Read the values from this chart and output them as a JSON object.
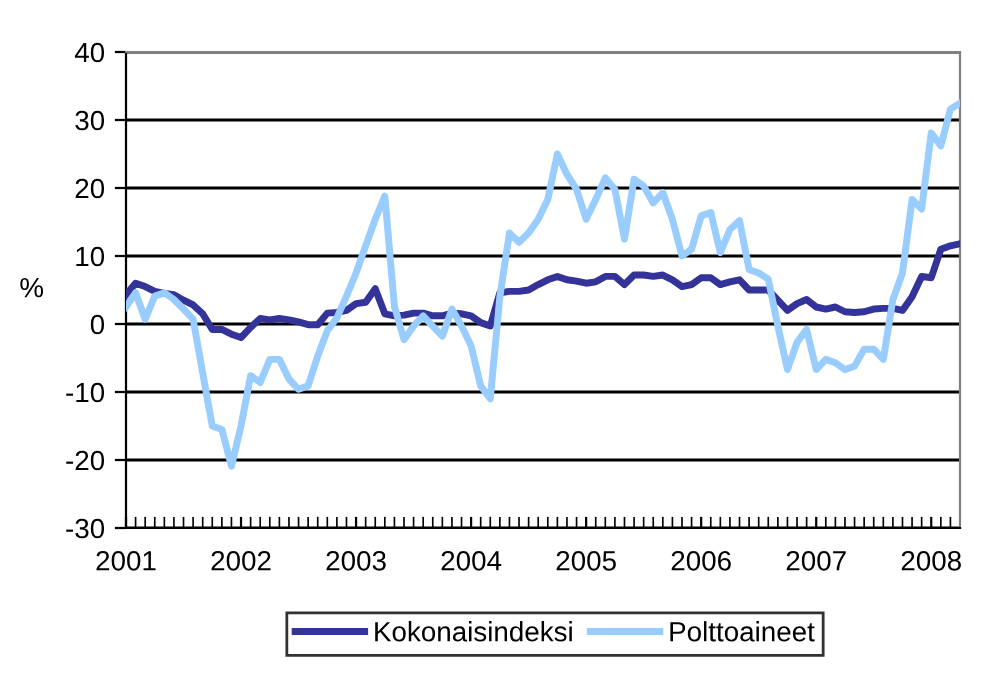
{
  "chart_data": {
    "type": "line",
    "ylabel": "%",
    "x": [
      "2001-01",
      "2001-02",
      "2001-03",
      "2001-04",
      "2001-05",
      "2001-06",
      "2001-07",
      "2001-08",
      "2001-09",
      "2001-10",
      "2001-11",
      "2001-12",
      "2002-01",
      "2002-02",
      "2002-03",
      "2002-04",
      "2002-05",
      "2002-06",
      "2002-07",
      "2002-08",
      "2002-09",
      "2002-10",
      "2002-11",
      "2002-12",
      "2003-01",
      "2003-02",
      "2003-03",
      "2003-04",
      "2003-05",
      "2003-06",
      "2003-07",
      "2003-08",
      "2003-09",
      "2003-10",
      "2003-11",
      "2003-12",
      "2004-01",
      "2004-02",
      "2004-03",
      "2004-04",
      "2004-05",
      "2004-06",
      "2004-07",
      "2004-08",
      "2004-09",
      "2004-10",
      "2004-11",
      "2004-12",
      "2005-01",
      "2005-02",
      "2005-03",
      "2005-04",
      "2005-05",
      "2005-06",
      "2005-07",
      "2005-08",
      "2005-09",
      "2005-10",
      "2005-11",
      "2005-12",
      "2006-01",
      "2006-02",
      "2006-03",
      "2006-04",
      "2006-05",
      "2006-06",
      "2006-07",
      "2006-08",
      "2006-09",
      "2006-10",
      "2006-11",
      "2006-12",
      "2007-01",
      "2007-02",
      "2007-03",
      "2007-04",
      "2007-05",
      "2007-06",
      "2007-07",
      "2007-08",
      "2007-09",
      "2007-10",
      "2007-11",
      "2007-12",
      "2008-01",
      "2008-02",
      "2008-03",
      "2008-04"
    ],
    "series": [
      {
        "name": "Kokonaisindeksi",
        "color": "#333399",
        "values": [
          4.3,
          6.0,
          5.5,
          4.8,
          4.5,
          4.3,
          3.5,
          2.8,
          1.5,
          -0.8,
          -0.8,
          -1.5,
          -2.0,
          -0.5,
          0.8,
          0.6,
          0.8,
          0.6,
          0.3,
          -0.1,
          -0.1,
          1.6,
          1.7,
          2.0,
          3.0,
          3.2,
          5.2,
          1.5,
          1.2,
          1.3,
          1.6,
          1.6,
          1.2,
          1.2,
          1.6,
          1.5,
          1.2,
          0.2,
          -0.3,
          4.6,
          4.8,
          4.8,
          5.0,
          5.8,
          6.5,
          7.0,
          6.5,
          6.3,
          6.0,
          6.2,
          7.0,
          7.0,
          5.8,
          7.2,
          7.2,
          7.0,
          7.2,
          6.5,
          5.5,
          5.8,
          6.8,
          6.8,
          5.8,
          6.2,
          6.5,
          5.0,
          5.0,
          5.0,
          3.5,
          2.0,
          3.0,
          3.6,
          2.5,
          2.2,
          2.5,
          1.8,
          1.7,
          1.8,
          2.2,
          2.3,
          2.3,
          2.0,
          4.0,
          7.0,
          6.8,
          11.0,
          11.5,
          11.8
        ]
      },
      {
        "name": "Polttoaineet",
        "color": "#99ccff",
        "values": [
          2.5,
          4.6,
          0.7,
          4.1,
          4.6,
          3.6,
          2.2,
          0.7,
          -7.2,
          -15.0,
          -15.5,
          -20.9,
          -15.0,
          -7.6,
          -8.6,
          -5.2,
          -5.2,
          -8.1,
          -9.6,
          -9.1,
          -4.7,
          -1.0,
          0.9,
          4.1,
          7.5,
          11.5,
          15.4,
          18.8,
          2.6,
          -2.3,
          -0.3,
          1.2,
          -0.3,
          -1.8,
          2.2,
          -0.3,
          -3.2,
          -9.1,
          -11.0,
          4.0,
          13.4,
          12.0,
          13.4,
          15.4,
          18.3,
          25.0,
          22.0,
          19.8,
          15.4,
          18.3,
          21.5,
          19.8,
          12.5,
          21.3,
          20.3,
          17.8,
          19.3,
          15.4,
          10.0,
          11.0,
          15.9,
          16.4,
          10.5,
          13.9,
          15.2,
          8.0,
          7.5,
          6.6,
          -0.3,
          -6.7,
          -2.7,
          -0.8,
          -6.7,
          -5.2,
          -5.7,
          -6.7,
          -6.2,
          -3.7,
          -3.7,
          -5.2,
          3.6,
          7.5,
          18.3,
          16.9,
          28.1,
          26.2,
          31.6,
          32.5
        ]
      }
    ],
    "xlim": [
      "2001-01",
      "2008-04"
    ],
    "xticks": [
      "2001",
      "2002",
      "2003",
      "2004",
      "2005",
      "2006",
      "2007",
      "2008"
    ],
    "ylim": [
      -30,
      40
    ],
    "yticks": [
      -30,
      -20,
      -10,
      0,
      10,
      20,
      30,
      40
    ],
    "grid": "y",
    "legend": "bottom",
    "marker": "none",
    "line_style": "solid"
  }
}
